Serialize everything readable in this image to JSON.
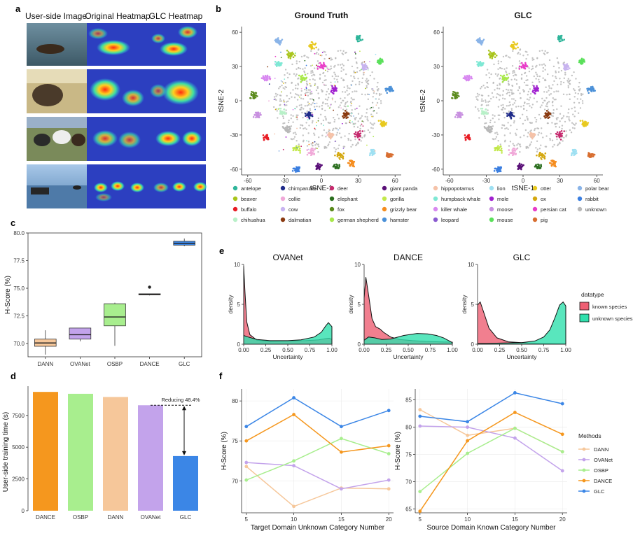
{
  "panel_letters": [
    "a",
    "b",
    "c",
    "d",
    "e",
    "f"
  ],
  "panel_a": {
    "columns": [
      "User-side Image",
      "Original Heatmap",
      "GLC Heatmap"
    ],
    "rows": [
      "otter in water",
      "elephant in field",
      "cows in field",
      "killer whale with boat"
    ]
  },
  "colors": {
    "DANN": "#f6c79a",
    "OVANet": "#c3a3eb",
    "OSBP": "#a8ee8e",
    "DANCE": "#f5971e",
    "GLC": "#3b86e6",
    "known": "#ee5f73",
    "unknown": "#2fe0ad",
    "unknown_points": "#b8b8b8"
  },
  "chart_data": [
    {
      "id": "b",
      "type": "scatter",
      "titles": [
        "Ground Truth",
        "GLC"
      ],
      "xlabel": "tSNE-1",
      "ylabel": "tSNE-2",
      "xlim": [
        -65,
        65
      ],
      "ylim": [
        -65,
        65
      ],
      "xticks": [
        -60,
        -30,
        0,
        30,
        60
      ],
      "yticks": [
        -60,
        -30,
        0,
        30,
        60
      ],
      "legend": [
        {
          "name": "antelope",
          "color": "#2fb59a"
        },
        {
          "name": "chimpanzee",
          "color": "#1f2b8a"
        },
        {
          "name": "deer",
          "color": "#c62a6e"
        },
        {
          "name": "giant panda",
          "color": "#5a1078"
        },
        {
          "name": "hippopotamus",
          "color": "#f5c2a8"
        },
        {
          "name": "lion",
          "color": "#9ee0f2"
        },
        {
          "name": "otter",
          "color": "#e8c91f"
        },
        {
          "name": "polar bear",
          "color": "#8ab4e8"
        },
        {
          "name": "beaver",
          "color": "#a8c41a"
        },
        {
          "name": "collie",
          "color": "#f0a8d8"
        },
        {
          "name": "elephant",
          "color": "#2a6e1e"
        },
        {
          "name": "gorilla",
          "color": "#c2e84a"
        },
        {
          "name": "humpback whale",
          "color": "#7ee8d4"
        },
        {
          "name": "mole",
          "color": "#a020d0"
        },
        {
          "name": "ox",
          "color": "#d4a810"
        },
        {
          "name": "rabbit",
          "color": "#3a7ee0"
        },
        {
          "name": "buffalo",
          "color": "#e81c24"
        },
        {
          "name": "cow",
          "color": "#c8b4f0"
        },
        {
          "name": "fox",
          "color": "#5a8a1c"
        },
        {
          "name": "grizzly bear",
          "color": "#f58c1e"
        },
        {
          "name": "killer whale",
          "color": "#d888f0"
        },
        {
          "name": "moose",
          "color": "#c890e0"
        },
        {
          "name": "persian cat",
          "color": "#e83cc8"
        },
        {
          "name": "unknown",
          "color": "#b8b8b8"
        },
        {
          "name": "chihuahua",
          "color": "#b8f0c8"
        },
        {
          "name": "dalmatian",
          "color": "#8a3a10"
        },
        {
          "name": "german shepherd",
          "color": "#a8e84a"
        },
        {
          "name": "hamster",
          "color": "#4a90d8"
        },
        {
          "name": "leopard",
          "color": "#8a5ad0"
        },
        {
          "name": "mouse",
          "color": "#5ae05a"
        },
        {
          "name": "pig",
          "color": "#d86e30"
        }
      ]
    },
    {
      "id": "c",
      "type": "box",
      "ylabel": "H-Score (%)",
      "ylim": [
        68.8,
        80.0
      ],
      "yticks": [
        70.0,
        72.5,
        75.0,
        77.5,
        80.0
      ],
      "categories": [
        "DANN",
        "OVANet",
        "OSBP",
        "DANCE",
        "GLC"
      ],
      "boxes": [
        {
          "name": "DANN",
          "min": 69.0,
          "q1": 69.75,
          "median": 70.05,
          "q3": 70.4,
          "max": 71.2,
          "outliers": []
        },
        {
          "name": "OVANet",
          "min": 70.2,
          "q1": 70.4,
          "median": 70.8,
          "q3": 71.4,
          "max": 71.4,
          "outliers": []
        },
        {
          "name": "OSBP",
          "min": 69.8,
          "q1": 71.6,
          "median": 72.4,
          "q3": 73.6,
          "max": 73.7,
          "outliers": []
        },
        {
          "name": "DANCE",
          "min": 74.35,
          "q1": 74.4,
          "median": 74.45,
          "q3": 74.5,
          "max": 74.5,
          "outliers": [
            75.1
          ]
        },
        {
          "name": "GLC",
          "min": 78.8,
          "q1": 78.9,
          "median": 79.05,
          "q3": 79.25,
          "max": 79.5,
          "outliers": []
        }
      ]
    },
    {
      "id": "d",
      "type": "bar",
      "ylabel": "User-side training time (s)",
      "ylim": [
        0,
        9800
      ],
      "yticks": [
        0,
        2500,
        5000,
        7500
      ],
      "categories": [
        "DANCE",
        "OSBP",
        "DANN",
        "OVANet",
        "GLC"
      ],
      "values": [
        9350,
        9200,
        8950,
        8300,
        4300
      ],
      "annotation": "Reducing 48.4%"
    },
    {
      "id": "e",
      "type": "area",
      "titles": [
        "OVANet",
        "DANCE",
        "GLC"
      ],
      "xlabel": "Uncertainty",
      "ylabel": "density",
      "xlim": [
        0,
        1
      ],
      "ylim": [
        0,
        10
      ],
      "xticks": [
        "0.00",
        "0.25",
        "0.50",
        "0.75",
        "1.00"
      ],
      "yticks": [
        0,
        5,
        10
      ],
      "legend_title": "datatype",
      "series": [
        {
          "name": "known species",
          "curves": [
            [
              [
                0,
                9.8
              ],
              [
                0.015,
                6.5
              ],
              [
                0.035,
                2.8
              ],
              [
                0.07,
                1.2
              ],
              [
                0.15,
                0.5
              ],
              [
                0.3,
                0.35
              ],
              [
                0.5,
                0.4
              ],
              [
                0.7,
                0.45
              ],
              [
                0.85,
                0.55
              ],
              [
                0.93,
                0.7
              ],
              [
                0.97,
                0.75
              ],
              [
                1.0,
                0.6
              ]
            ],
            [
              [
                0,
                5.8
              ],
              [
                0.02,
                8.4
              ],
              [
                0.05,
                6.2
              ],
              [
                0.09,
                3.2
              ],
              [
                0.13,
                2.2
              ],
              [
                0.18,
                1.9
              ],
              [
                0.22,
                1.5
              ],
              [
                0.3,
                0.9
              ],
              [
                0.4,
                0.6
              ],
              [
                0.55,
                0.45
              ],
              [
                0.7,
                0.35
              ],
              [
                0.85,
                0.3
              ],
              [
                1.0,
                0.25
              ]
            ],
            [
              [
                0,
                4.9
              ],
              [
                0.03,
                5.3
              ],
              [
                0.07,
                4.0
              ],
              [
                0.13,
                2.0
              ],
              [
                0.22,
                0.8
              ],
              [
                0.35,
                0.3
              ],
              [
                0.5,
                0.2
              ],
              [
                0.7,
                0.1
              ],
              [
                0.85,
                0.08
              ],
              [
                1.0,
                0.05
              ]
            ]
          ]
        },
        {
          "name": "unknown species",
          "curves": [
            [
              [
                0,
                1.1
              ],
              [
                0.05,
                0.9
              ],
              [
                0.15,
                0.6
              ],
              [
                0.3,
                0.45
              ],
              [
                0.5,
                0.45
              ],
              [
                0.65,
                0.55
              ],
              [
                0.8,
                0.9
              ],
              [
                0.88,
                1.5
              ],
              [
                0.93,
                2.3
              ],
              [
                0.96,
                2.7
              ],
              [
                1.0,
                2.2
              ]
            ],
            [
              [
                0,
                0.5
              ],
              [
                0.05,
                0.9
              ],
              [
                0.12,
                0.8
              ],
              [
                0.2,
                0.6
              ],
              [
                0.3,
                0.65
              ],
              [
                0.45,
                1.1
              ],
              [
                0.6,
                1.35
              ],
              [
                0.72,
                1.3
              ],
              [
                0.82,
                1.1
              ],
              [
                0.9,
                0.8
              ],
              [
                0.95,
                0.5
              ],
              [
                1.0,
                0.2
              ]
            ],
            [
              [
                0,
                0.1
              ],
              [
                0.1,
                0.1
              ],
              [
                0.3,
                0.15
              ],
              [
                0.5,
                0.2
              ],
              [
                0.65,
                0.4
              ],
              [
                0.75,
                0.9
              ],
              [
                0.82,
                1.8
              ],
              [
                0.88,
                3.4
              ],
              [
                0.93,
                4.9
              ],
              [
                0.97,
                5.3
              ],
              [
                1.0,
                4.8
              ]
            ]
          ]
        }
      ]
    },
    {
      "id": "f",
      "type": "line",
      "ylabel": "H-Score (%)",
      "legend_title": "Methods",
      "panels": [
        {
          "xlabel": "Target Domain Unknown Category Number",
          "x": [
            5,
            10,
            15,
            20
          ],
          "ylim": [
            66,
            81.5
          ],
          "yticks": [
            70,
            75,
            80
          ],
          "series": [
            {
              "name": "DANN",
              "values": [
                71.8,
                66.8,
                69.1,
                69.0
              ]
            },
            {
              "name": "OVANet",
              "values": [
                72.3,
                71.9,
                69.0,
                70.1
              ]
            },
            {
              "name": "OSBP",
              "values": [
                70.1,
                72.5,
                75.3,
                73.4
              ]
            },
            {
              "name": "DANCE",
              "values": [
                75.0,
                78.3,
                73.6,
                74.4
              ]
            },
            {
              "name": "GLC",
              "values": [
                76.8,
                80.4,
                76.8,
                78.8
              ]
            }
          ]
        },
        {
          "xlabel": "Source Domain Known Category Number",
          "x": [
            5,
            10,
            15,
            20
          ],
          "ylim": [
            64.3,
            87.0
          ],
          "yticks": [
            65,
            70,
            75,
            80,
            85
          ],
          "series": [
            {
              "name": "DANN",
              "values": [
                83.2,
                78.5,
                79.8,
                75.5
              ]
            },
            {
              "name": "OVANet",
              "values": [
                80.2,
                80.0,
                78.0,
                72.0
              ]
            },
            {
              "name": "OSBP",
              "values": [
                68.2,
                75.2,
                79.8,
                75.5
              ]
            },
            {
              "name": "DANCE",
              "values": [
                64.6,
                77.5,
                82.7,
                78.7
              ]
            },
            {
              "name": "GLC",
              "values": [
                82.0,
                81.0,
                86.3,
                84.3
              ]
            }
          ]
        }
      ]
    }
  ]
}
